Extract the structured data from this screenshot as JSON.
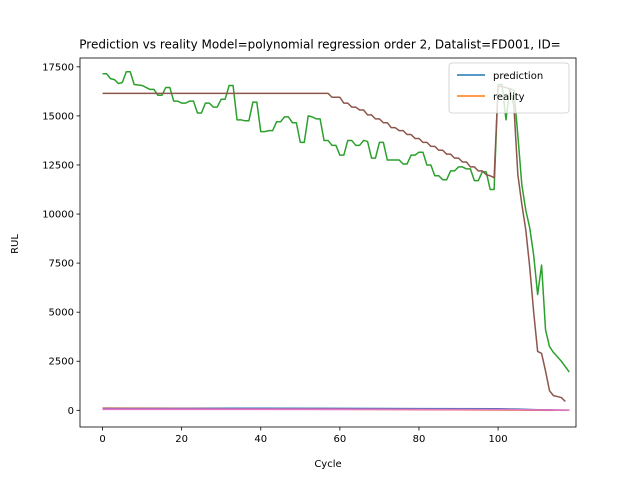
{
  "chart_data": {
    "type": "line",
    "title": "Prediction vs reality Model=polynomial regression order 2, Datalist=FD001, ID=",
    "xlabel": "Cycle",
    "ylabel": "RUL",
    "xlim": [
      -5.7,
      119.7
    ],
    "ylim": [
      -850,
      17950
    ],
    "xticks": [
      0,
      20,
      40,
      60,
      80,
      100
    ],
    "yticks": [
      0,
      2500,
      5000,
      7500,
      10000,
      12500,
      15000,
      17500
    ],
    "grid": false,
    "legend": {
      "placement": "top-right",
      "entries": [
        {
          "name": "prediction",
          "color": "#1f77b4"
        },
        {
          "name": "reality",
          "color": "#ff7f0e"
        }
      ]
    },
    "series": [
      {
        "name": "prediction",
        "color": "#1f77b4",
        "points": [
          [
            0,
            110
          ],
          [
            20,
            108
          ],
          [
            40,
            102
          ],
          [
            60,
            96
          ],
          [
            80,
            88
          ],
          [
            100,
            80
          ],
          [
            105,
            60
          ],
          [
            110,
            30
          ],
          [
            114,
            10
          ]
        ]
      },
      {
        "name": "reality",
        "color": "#ff7f0e",
        "points": [
          [
            0,
            114
          ],
          [
            20,
            94
          ],
          [
            40,
            74
          ],
          [
            60,
            54
          ],
          [
            80,
            34
          ],
          [
            100,
            14
          ],
          [
            105,
            9
          ],
          [
            110,
            4
          ],
          [
            114,
            0
          ]
        ]
      },
      {
        "color": "#2ca02c",
        "points": [
          [
            0,
            17150
          ],
          [
            1,
            17150
          ],
          [
            2,
            16900
          ],
          [
            3,
            16850
          ],
          [
            4,
            16650
          ],
          [
            5,
            16700
          ],
          [
            6,
            17250
          ],
          [
            7,
            17250
          ],
          [
            8,
            16600
          ],
          [
            10,
            16550
          ],
          [
            12,
            16350
          ],
          [
            13,
            16350
          ],
          [
            14,
            16050
          ],
          [
            15,
            16050
          ],
          [
            16,
            16450
          ],
          [
            17,
            16450
          ],
          [
            18,
            15750
          ],
          [
            19,
            15750
          ],
          [
            20,
            15650
          ],
          [
            21,
            15650
          ],
          [
            22,
            15750
          ],
          [
            23,
            15750
          ],
          [
            24,
            15150
          ],
          [
            25,
            15150
          ],
          [
            26,
            15650
          ],
          [
            27,
            15650
          ],
          [
            28,
            15450
          ],
          [
            29,
            15450
          ],
          [
            30,
            15850
          ],
          [
            31,
            15850
          ],
          [
            32,
            16550
          ],
          [
            33,
            16550
          ],
          [
            34,
            14800
          ],
          [
            35,
            14800
          ],
          [
            36,
            14750
          ],
          [
            37,
            14750
          ],
          [
            38,
            15700
          ],
          [
            39,
            15700
          ],
          [
            40,
            14200
          ],
          [
            41,
            14200
          ],
          [
            42,
            14250
          ],
          [
            43,
            14250
          ],
          [
            44,
            14700
          ],
          [
            45,
            14700
          ],
          [
            46,
            14950
          ],
          [
            47,
            14950
          ],
          [
            48,
            14650
          ],
          [
            49,
            14650
          ],
          [
            50,
            13650
          ],
          [
            51,
            13650
          ],
          [
            52,
            15000
          ],
          [
            53,
            14950
          ],
          [
            54,
            14850
          ],
          [
            55,
            14850
          ],
          [
            56,
            13750
          ],
          [
            57,
            13750
          ],
          [
            58,
            13500
          ],
          [
            59,
            13500
          ],
          [
            60,
            13000
          ],
          [
            61,
            13000
          ],
          [
            62,
            13750
          ],
          [
            63,
            13750
          ],
          [
            64,
            13500
          ],
          [
            65,
            13500
          ],
          [
            66,
            13750
          ],
          [
            67,
            13700
          ],
          [
            68,
            12850
          ],
          [
            69,
            12850
          ],
          [
            70,
            13650
          ],
          [
            71,
            13650
          ],
          [
            72,
            12750
          ],
          [
            73,
            12750
          ],
          [
            74,
            12750
          ],
          [
            75,
            12750
          ],
          [
            76,
            12550
          ],
          [
            77,
            12550
          ],
          [
            78,
            13000
          ],
          [
            79,
            13000
          ],
          [
            80,
            13150
          ],
          [
            81,
            13150
          ],
          [
            82,
            12500
          ],
          [
            83,
            12500
          ],
          [
            84,
            11950
          ],
          [
            85,
            11950
          ],
          [
            86,
            11750
          ],
          [
            87,
            11750
          ],
          [
            88,
            12200
          ],
          [
            89,
            12200
          ],
          [
            90,
            12400
          ],
          [
            91,
            12400
          ],
          [
            92,
            12300
          ],
          [
            93,
            12300
          ],
          [
            94,
            11700
          ],
          [
            95,
            11700
          ],
          [
            96,
            12150
          ],
          [
            97,
            12150
          ],
          [
            98,
            11250
          ],
          [
            99,
            11250
          ],
          [
            100,
            16600
          ],
          [
            101,
            16600
          ],
          [
            102,
            14800
          ],
          [
            103,
            16400
          ],
          [
            104,
            16300
          ],
          [
            105,
            14000
          ],
          [
            106,
            11500
          ],
          [
            107,
            10200
          ],
          [
            108,
            9300
          ],
          [
            109,
            7900
          ],
          [
            110,
            5900
          ],
          [
            111,
            7400
          ],
          [
            112,
            4100
          ],
          [
            113,
            3250
          ],
          [
            114,
            2950
          ],
          [
            116,
            2500
          ],
          [
            118,
            1950
          ]
        ]
      },
      {
        "color": "#d62728",
        "points": [
          [
            0,
            70
          ],
          [
            20,
            68
          ],
          [
            40,
            64
          ],
          [
            60,
            58
          ],
          [
            80,
            50
          ],
          [
            100,
            42
          ],
          [
            105,
            30
          ],
          [
            110,
            15
          ],
          [
            118,
            5
          ]
        ]
      },
      {
        "color": "#9467bd",
        "points": [
          [
            0,
            90
          ],
          [
            20,
            86
          ],
          [
            40,
            80
          ],
          [
            60,
            72
          ],
          [
            80,
            62
          ],
          [
            100,
            52
          ],
          [
            105,
            38
          ],
          [
            110,
            20
          ],
          [
            118,
            8
          ]
        ]
      },
      {
        "color": "#8c564b",
        "points": [
          [
            0,
            16150
          ],
          [
            57,
            16150
          ],
          [
            58,
            15950
          ],
          [
            60,
            15950
          ],
          [
            61,
            15650
          ],
          [
            62,
            15650
          ],
          [
            63,
            15450
          ],
          [
            64,
            15450
          ],
          [
            65,
            15300
          ],
          [
            66,
            15300
          ],
          [
            67,
            15050
          ],
          [
            68,
            15050
          ],
          [
            69,
            14850
          ],
          [
            70,
            14850
          ],
          [
            71,
            14650
          ],
          [
            72,
            14650
          ],
          [
            73,
            14400
          ],
          [
            74,
            14400
          ],
          [
            75,
            14250
          ],
          [
            76,
            14250
          ],
          [
            77,
            14050
          ],
          [
            78,
            14050
          ],
          [
            79,
            13850
          ],
          [
            80,
            13850
          ],
          [
            81,
            13650
          ],
          [
            82,
            13650
          ],
          [
            83,
            13450
          ],
          [
            84,
            13450
          ],
          [
            85,
            13250
          ],
          [
            86,
            13250
          ],
          [
            87,
            13050
          ],
          [
            88,
            13050
          ],
          [
            89,
            12850
          ],
          [
            90,
            12850
          ],
          [
            91,
            12650
          ],
          [
            92,
            12650
          ],
          [
            93,
            12400
          ],
          [
            94,
            12400
          ],
          [
            95,
            12200
          ],
          [
            96,
            12200
          ],
          [
            97,
            12000
          ],
          [
            98,
            11950
          ],
          [
            99,
            11850
          ],
          [
            100,
            16500
          ],
          [
            101,
            16500
          ],
          [
            102,
            16450
          ],
          [
            103,
            16350
          ],
          [
            104,
            15500
          ],
          [
            105,
            12000
          ],
          [
            106,
            10500
          ],
          [
            107,
            9200
          ],
          [
            108,
            7300
          ],
          [
            109,
            5000
          ],
          [
            110,
            3000
          ],
          [
            111,
            2900
          ],
          [
            112,
            2000
          ],
          [
            113,
            1000
          ],
          [
            114,
            750
          ],
          [
            115,
            700
          ],
          [
            116,
            650
          ],
          [
            117,
            450
          ]
        ]
      },
      {
        "color": "#e377c2",
        "points": [
          [
            0,
            50
          ],
          [
            20,
            49
          ],
          [
            40,
            47
          ],
          [
            60,
            44
          ],
          [
            80,
            40
          ],
          [
            100,
            34
          ],
          [
            105,
            26
          ],
          [
            110,
            14
          ],
          [
            118,
            4
          ]
        ]
      }
    ]
  }
}
